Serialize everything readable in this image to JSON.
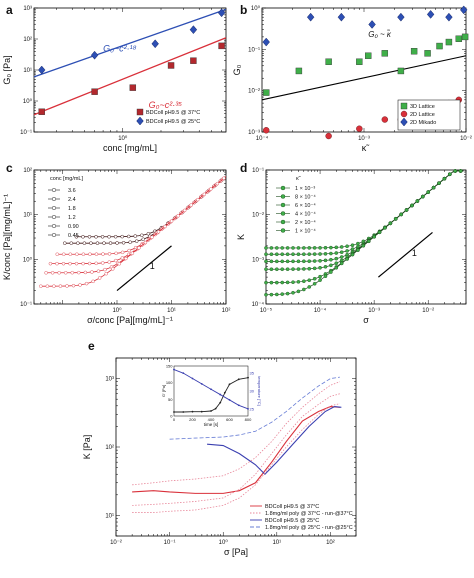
{
  "chart_data": [
    {
      "panel": "a",
      "type": "scatter",
      "xscale": "log",
      "yscale": "log",
      "xlim": [
        0.2,
        6.5
      ],
      "ylim": [
        0.1,
        1000
      ],
      "xlabel": "conc [mg/mL]",
      "ylabel": "G₀ [Pa]",
      "yticks": [
        {
          "v": 0.1,
          "label": "10⁻¹"
        },
        {
          "v": 1,
          "label": "10⁰"
        },
        {
          "v": 10,
          "label": "10¹"
        },
        {
          "v": 100,
          "label": "10²"
        },
        {
          "v": 1000,
          "label": "10³"
        }
      ],
      "xticks": [
        {
          "v": 1,
          "label": "10⁰"
        }
      ],
      "annotations": [
        {
          "text": "G₀~c²·¹⁸",
          "x": 0.7,
          "y": 40,
          "color": "#2d4fb4"
        },
        {
          "text": "G₀~c²·³⁵",
          "x": 1.6,
          "y": 0.6,
          "color": "#d9303a"
        }
      ],
      "legend": {
        "placement": "bottom-right",
        "entries": [
          "BDColl pH9.5 @ 37°C",
          "BDColl pH9.5 @ 25°C"
        ]
      },
      "series": [
        {
          "name": "BDColl pH9.5 @ 37°C",
          "color": "#b3282d",
          "marker": "square",
          "x": [
            0.23,
            0.6,
            1.2,
            2.4,
            3.6,
            6.0
          ],
          "y": [
            0.45,
            2.0,
            2.7,
            14,
            20,
            60
          ],
          "fit": {
            "x": [
              0.2,
              6.5
            ],
            "y": [
              0.36,
              110
            ]
          },
          "fit_color": "#d9303a"
        },
        {
          "name": "BDColl pH9.5 @ 25°C",
          "color": "#2d4fb4",
          "marker": "diamond",
          "x": [
            0.23,
            0.6,
            1.8,
            3.6,
            6.0
          ],
          "y": [
            10,
            30,
            70,
            200,
            700
          ],
          "fit": {
            "x": [
              0.2,
              6.5
            ],
            "y": [
              6.0,
              900
            ]
          },
          "fit_color": "#2d4fb4"
        }
      ]
    },
    {
      "panel": "b",
      "type": "scatter",
      "xscale": "log",
      "yscale": "log",
      "xlim": [
        0.0001,
        0.01
      ],
      "ylim": [
        0.001,
        1
      ],
      "xlabel": "κ̃",
      "ylabel": "G₀",
      "yticks": [
        {
          "v": 0.001,
          "label": "10⁻³"
        },
        {
          "v": 0.01,
          "label": "10⁻²"
        },
        {
          "v": 0.1,
          "label": "10⁻¹"
        },
        {
          "v": 1,
          "label": "10⁰"
        }
      ],
      "xticks": [
        {
          "v": 0.0001,
          "label": "10⁻⁴"
        },
        {
          "v": 0.001,
          "label": "10⁻³"
        },
        {
          "v": 0.01,
          "label": "10⁻²"
        }
      ],
      "annotations": [
        {
          "text": "G₀ ~ κ̃",
          "x": 0.0011,
          "y": 0.2,
          "color": "#111"
        }
      ],
      "legend": {
        "placement": "bottom-right",
        "entries": [
          "3D Lattice",
          "2D Lattice",
          "2D Mikado"
        ]
      },
      "fit": {
        "x": [
          0.0001,
          0.01
        ],
        "y": [
          0.006,
          0.07
        ]
      },
      "series": [
        {
          "name": "3D Lattice",
          "color": "#3fae49",
          "marker": "square",
          "x": [
            0.00011,
            0.00023,
            0.00045,
            0.0009,
            0.0011,
            0.0016,
            0.0023,
            0.0031,
            0.0042,
            0.0055,
            0.0068,
            0.0085,
            0.0098
          ],
          "y": [
            0.009,
            0.03,
            0.05,
            0.05,
            0.07,
            0.08,
            0.03,
            0.09,
            0.08,
            0.12,
            0.15,
            0.18,
            0.2
          ]
        },
        {
          "name": "2D Lattice",
          "color": "#d9303a",
          "marker": "circle",
          "x": [
            0.00011,
            0.00045,
            0.0009,
            0.0016,
            0.0023,
            0.0031,
            0.0042,
            0.0055,
            0.0068,
            0.0085
          ],
          "y": [
            0.0011,
            0.0008,
            0.0012,
            0.002,
            0.002,
            0.003,
            0.004,
            0.004,
            0.005,
            0.006
          ]
        },
        {
          "name": "2D Mikado",
          "color": "#2d4fb4",
          "marker": "diamond",
          "x": [
            0.00011,
            0.0003,
            0.0006,
            0.0012,
            0.0023,
            0.0045,
            0.0068,
            0.0095
          ],
          "y": [
            0.15,
            0.6,
            0.6,
            0.4,
            0.6,
            0.7,
            0.6,
            0.9
          ]
        }
      ]
    },
    {
      "panel": "c",
      "type": "line",
      "xscale": "log",
      "yscale": "log",
      "xlim": [
        0.03,
        100
      ],
      "ylim": [
        0.1,
        100
      ],
      "xlabel": "σ/conc [Pa][mg/mL]⁻¹",
      "ylabel": "K/conc [Pa][mg/mL]⁻¹",
      "yticks": [
        {
          "v": 0.1,
          "label": "10⁻¹"
        },
        {
          "v": 1,
          "label": "10⁰"
        },
        {
          "v": 10,
          "label": "10¹"
        },
        {
          "v": 100,
          "label": "10²"
        }
      ],
      "xticks": [
        {
          "v": 1,
          "label": "10⁰"
        },
        {
          "v": 10,
          "label": "10¹"
        },
        {
          "v": 100,
          "label": "10²"
        }
      ],
      "slope_label": "1",
      "legend": {
        "title": "conc [mg/mL]",
        "placement": "top-left",
        "entries": [
          "3.6",
          "2.4",
          "1.8",
          "1.2",
          "0.90",
          "0.45"
        ]
      },
      "series": [
        {
          "name": "3.6",
          "plateau": 3.2,
          "xstart": 0.18
        },
        {
          "name": "2.4",
          "plateau": 2.3,
          "xstart": 0.11
        },
        {
          "name": "1.8",
          "plateau": 1.3,
          "xstart": 0.08
        },
        {
          "name": "1.2",
          "plateau": 0.8,
          "xstart": 0.06
        },
        {
          "name": "0.90",
          "plateau": 0.5,
          "xstart": 0.05
        },
        {
          "name": "0.45",
          "plateau": 0.25,
          "xstart": 0.04
        }
      ]
    },
    {
      "panel": "d",
      "type": "line",
      "xscale": "log",
      "yscale": "log",
      "xlim": [
        1e-05,
        0.05
      ],
      "ylim": [
        0.0001,
        0.1
      ],
      "xlabel": "σ",
      "ylabel": "K",
      "yticks": [
        {
          "v": 0.0001,
          "label": "10⁻⁴"
        },
        {
          "v": 0.001,
          "label": "10⁻³"
        },
        {
          "v": 0.01,
          "label": "10⁻²"
        },
        {
          "v": 0.1,
          "label": "10⁻¹"
        }
      ],
      "xticks": [
        {
          "v": 1e-05,
          "label": "10⁻⁵"
        },
        {
          "v": 0.0001,
          "label": "10⁻⁴"
        },
        {
          "v": 0.001,
          "label": "10⁻³"
        },
        {
          "v": 0.01,
          "label": "10⁻²"
        }
      ],
      "slope_label": "1",
      "legend": {
        "title": "κ̃",
        "placement": "top-left",
        "entries": [
          "1 × 10⁻³",
          "8 × 10⁻⁴",
          "6 × 10⁻⁴",
          "4 × 10⁻⁴",
          "2 × 10⁻⁴",
          "1 × 10⁻⁴"
        ]
      },
      "series": [
        {
          "name": "1 × 10⁻³",
          "plateau": 0.0018
        },
        {
          "name": "8 × 10⁻⁴",
          "plateau": 0.0013
        },
        {
          "name": "6 × 10⁻⁴",
          "plateau": 0.0009
        },
        {
          "name": "4 × 10⁻⁴",
          "plateau": 0.0006
        },
        {
          "name": "2 × 10⁻⁴",
          "plateau": 0.0003
        },
        {
          "name": "1 × 10⁻⁴",
          "plateau": 0.00016
        }
      ]
    },
    {
      "panel": "e",
      "type": "line",
      "xscale": "log",
      "yscale": "log",
      "xlim": [
        0.01,
        300
      ],
      "ylim": [
        5,
        2000
      ],
      "xlabel": "σ [Pa]",
      "ylabel": "K [Pa]",
      "yticks": [
        {
          "v": 10,
          "label": "10¹"
        },
        {
          "v": 100,
          "label": "10²"
        },
        {
          "v": 1000,
          "label": "10³"
        }
      ],
      "xticks": [
        {
          "v": 0.01,
          "label": "10⁻²"
        },
        {
          "v": 0.1,
          "label": "10⁻¹"
        },
        {
          "v": 1,
          "label": "10⁰"
        },
        {
          "v": 10,
          "label": "10¹"
        },
        {
          "v": 100,
          "label": "10²"
        }
      ],
      "legend": {
        "placement": "bottom-right",
        "entries": [
          "BDColl pH9.5 @ 37°C",
          "1.8mg/ml poly @ 37°C - run-@37°C",
          "BDColl pH9.5 @ 25°C",
          "1.8mg/ml poly @ 25°C - run-@25°C"
        ]
      },
      "series": [
        {
          "name": "BDColl pH9.5 @ 37°C",
          "color": "#d9303a",
          "style": "solid",
          "x": [
            0.02,
            0.05,
            0.1,
            0.3,
            1,
            2,
            4,
            8,
            15,
            30,
            60,
            100,
            150
          ],
          "y": [
            22,
            23,
            22,
            21,
            21,
            23,
            30,
            60,
            120,
            240,
            330,
            390,
            380
          ]
        },
        {
          "name": "1.8mg/ml poly @ 37°C - run-@37°C",
          "color": "#e8879a",
          "style": "dotted",
          "x": [
            0.02,
            0.05,
            0.1,
            0.3,
            1,
            2,
            4,
            8,
            15,
            30,
            60,
            100,
            150
          ],
          "y": [
            14,
            14.5,
            15,
            16,
            18,
            24,
            40,
            80,
            150,
            280,
            420,
            550,
            600
          ]
        },
        {
          "name": "BDColl pH9.5 @ 25°C",
          "color": "#3a3fb0",
          "style": "solid",
          "x": [
            0.5,
            1,
            2,
            4,
            6,
            10,
            20,
            40,
            80,
            120,
            160
          ],
          "y": [
            110,
            105,
            80,
            55,
            40,
            60,
            110,
            200,
            330,
            390,
            380
          ]
        },
        {
          "name": "1.8mg/ml poly @ 25°C - run-@25°C",
          "color": "#6a7fd6",
          "style": "dashed",
          "x": [
            0.1,
            0.3,
            1,
            2,
            4,
            8,
            15,
            30,
            60,
            100,
            150
          ],
          "y": [
            130,
            135,
            140,
            150,
            170,
            230,
            330,
            520,
            780,
            1000,
            1050
          ]
        },
        {
          "name": "",
          "color": "#e8879a",
          "style": "dotted",
          "x": [
            0.02,
            0.05,
            0.1,
            0.3,
            1,
            2,
            4,
            8,
            15,
            30,
            60,
            100,
            150
          ],
          "y": [
            28,
            30,
            32,
            34,
            38,
            48,
            70,
            120,
            220,
            380,
            600,
            800,
            900
          ]
        },
        {
          "name": "",
          "color": "#e8879a",
          "style": "dotted",
          "x": [
            0.02,
            0.05,
            0.1,
            0.3,
            1,
            2,
            4,
            8,
            15,
            30,
            60,
            100,
            150
          ],
          "y": [
            11,
            11,
            11.5,
            12,
            14,
            18,
            28,
            55,
            100,
            180,
            300,
            400,
            430
          ]
        }
      ],
      "inset": {
        "xlabel": "time [s]",
        "ylabel_left": "G' [Pa]",
        "ylabel_right": "temperature [°C]",
        "xticks": [
          {
            "v": 0,
            "label": "0"
          },
          {
            "v": 200,
            "label": "200"
          },
          {
            "v": 400,
            "label": "400"
          },
          {
            "v": 600,
            "label": "600"
          },
          {
            "v": 800,
            "label": "800"
          }
        ],
        "yticks_left": [
          {
            "v": 0,
            "label": "0"
          },
          {
            "v": 50,
            "label": "50"
          },
          {
            "v": 100,
            "label": "100"
          },
          {
            "v": 150,
            "label": "150"
          }
        ],
        "yticks_right": [
          {
            "v": 25,
            "label": "25"
          },
          {
            "v": 30,
            "label": "30"
          },
          {
            "v": 35,
            "label": "35"
          }
        ],
        "xlim": [
          0,
          800
        ],
        "ylim_left": [
          0,
          150
        ],
        "ylim_right": [
          23,
          37
        ],
        "series": [
          {
            "name": "",
            "axis": "left",
            "color": "#222",
            "x": [
              0,
              100,
              200,
              300,
              400,
              450,
              500,
              550,
              600,
              700,
              800
            ],
            "y": [
              12,
              12,
              13,
              13,
              15,
              22,
              40,
              70,
              95,
              110,
              115
            ]
          },
          {
            "name": "",
            "axis": "right",
            "color": "#3a3fb0",
            "x": [
              0,
              100,
              200,
              300,
              400,
              500,
              600,
              700,
              800
            ],
            "y": [
              36,
              35,
              33.5,
              32,
              30.5,
              29,
              27.5,
              26,
              25
            ]
          }
        ]
      }
    }
  ]
}
